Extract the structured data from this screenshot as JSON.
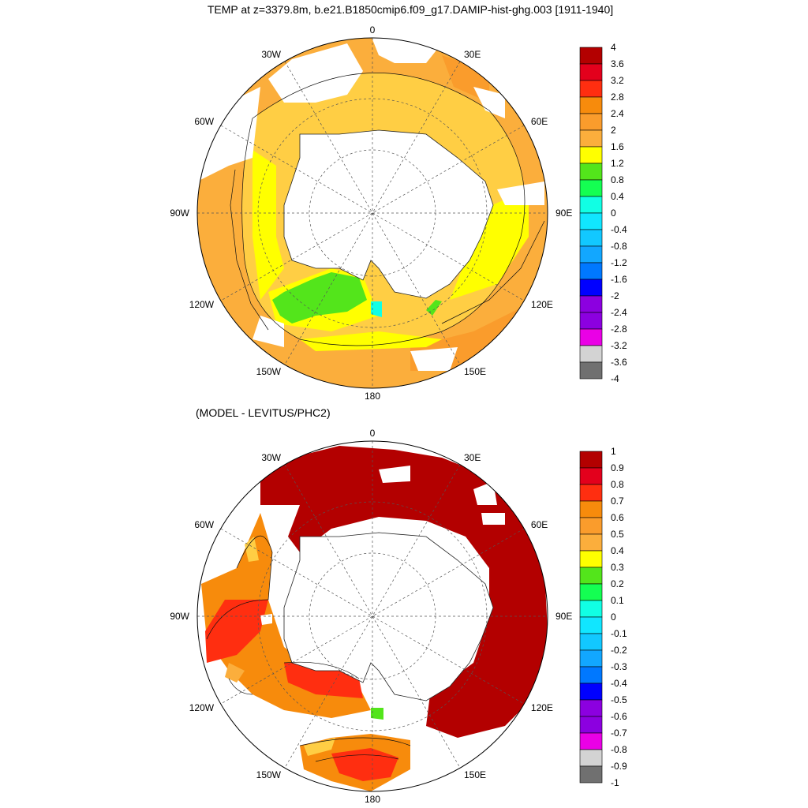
{
  "top_panel": {
    "title": "TEMP at z=3379.8m, b.e21.B1850cmip6.f09_g17.DAMIP-hist-ghg.003 [1911-1940]",
    "colorbar_labels": [
      "4",
      "3.6",
      "3.2",
      "2.8",
      "2.4",
      "2",
      "1.6",
      "1.2",
      "0.8",
      "0.4",
      "0",
      "-0.4",
      "-0.8",
      "-1.2",
      "-1.6",
      "-2",
      "-2.4",
      "-2.8",
      "-3.2",
      "-3.6",
      "-4"
    ]
  },
  "bottom_panel": {
    "title": "(MODEL - LEVITUS/PHC2)",
    "colorbar_labels": [
      "1",
      "0.9",
      "0.8",
      "0.7",
      "0.6",
      "0.5",
      "0.4",
      "0.3",
      "0.2",
      "0.1",
      "0",
      "-0.1",
      "-0.2",
      "-0.3",
      "-0.4",
      "-0.5",
      "-0.6",
      "-0.7",
      "-0.8",
      "-0.9",
      "-1"
    ]
  },
  "colorbar_colors": [
    "#b30000",
    "#e3001c",
    "#ff2e10",
    "#f78b0c",
    "#fa9c2c",
    "#fbae3c",
    "#ffff00",
    "#53e51b",
    "#14ff52",
    "#11ffe4",
    "#11e6ff",
    "#12c8ff",
    "#12a7ff",
    "#0078ff",
    "#0000ff",
    "#8c00e0",
    "#ea00e6",
    "#d3d3d3",
    "#707070",
    "#ffffff"
  ],
  "longitude_labels": [
    "0",
    "30E",
    "60E",
    "90E",
    "120E",
    "150E",
    "180",
    "150W",
    "120W",
    "90W",
    "60W",
    "30W"
  ],
  "colors": {
    "land": "#ffffff",
    "grid": "#555555"
  }
}
